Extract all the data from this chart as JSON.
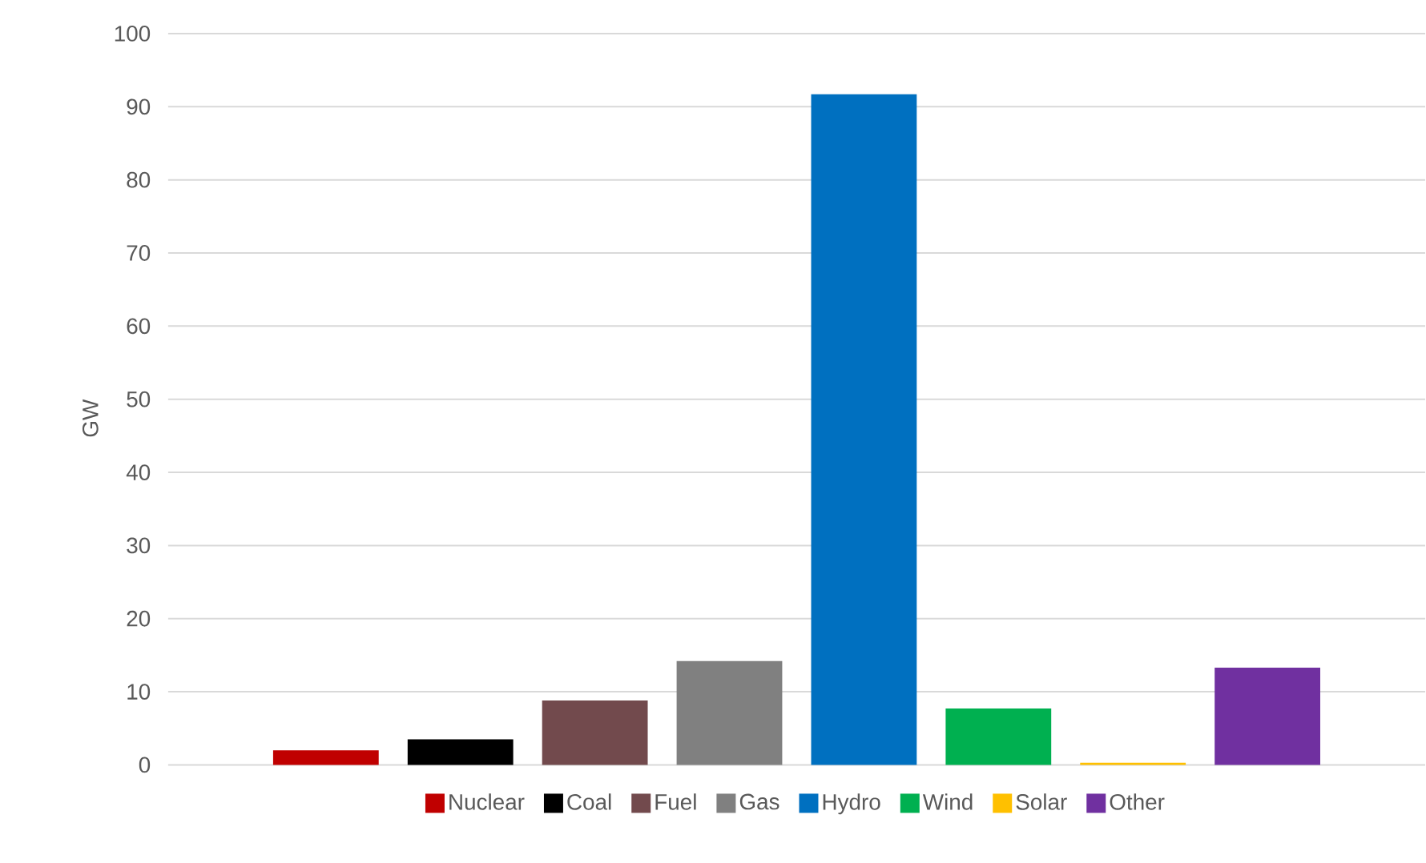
{
  "chart_data": {
    "type": "bar",
    "ylabel": "GW",
    "categories": [
      null
    ],
    "series": [
      {
        "name": "Nuclear",
        "color": "#c00000",
        "values": [
          2.0
        ]
      },
      {
        "name": "Coal",
        "color": "#000000",
        "values": [
          3.5
        ]
      },
      {
        "name": "Fuel",
        "color": "#724a4d",
        "values": [
          8.8
        ]
      },
      {
        "name": "Gas",
        "color": "#808080",
        "values": [
          14.2
        ]
      },
      {
        "name": "Hydro",
        "color": "#0070c0",
        "values": [
          91.7
        ]
      },
      {
        "name": "Wind",
        "color": "#00b050",
        "values": [
          7.7
        ]
      },
      {
        "name": "Solar",
        "color": "#ffc000",
        "values": [
          0.3
        ]
      },
      {
        "name": "Other",
        "color": "#7030a0",
        "values": [
          13.3
        ]
      }
    ],
    "ylim": [
      0,
      100
    ],
    "yticks": [
      0,
      10,
      20,
      30,
      40,
      50,
      60,
      70,
      80,
      90,
      100
    ],
    "grid": "y",
    "legend": "bottom"
  }
}
